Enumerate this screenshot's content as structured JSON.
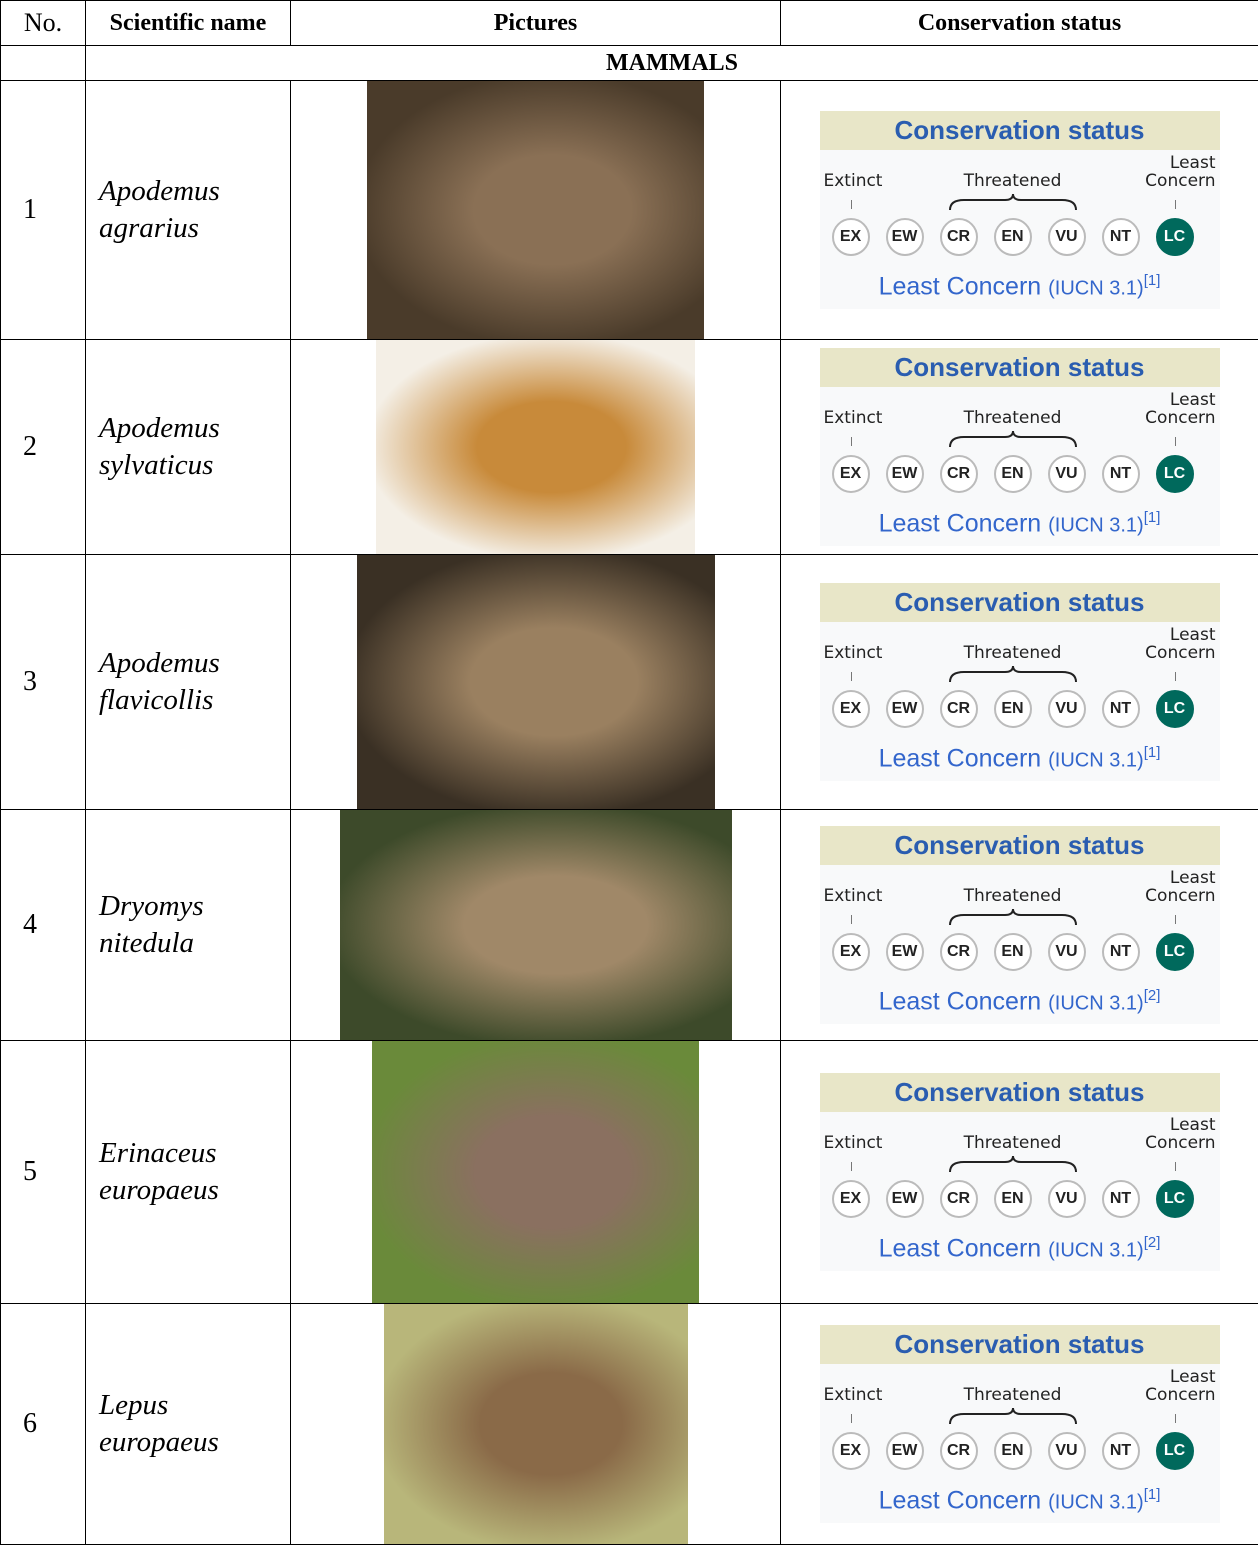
{
  "table": {
    "columns": [
      "No.",
      "Scientific name",
      "Pictures",
      "Conservation status"
    ],
    "section": "MAMMALS",
    "rows": [
      {
        "number": "1",
        "name": "Apodemus agrarius",
        "status": {
          "title": "Conservation status",
          "extinct": "Extinct",
          "threatened": "Threatened",
          "least_concern": [
            "Least",
            "Concern"
          ],
          "codes": [
            "EX",
            "EW",
            "CR",
            "EN",
            "VU",
            "NT",
            "LC"
          ],
          "assessment": "Least Concern",
          "system": "(IUCN 3.1)",
          "ref": "[1]"
        }
      },
      {
        "number": "2",
        "name": "Apodemus sylvaticus",
        "status": {
          "title": "Conservation status",
          "extinct": "Extinct",
          "threatened": "Threatened",
          "least_concern": [
            "Least",
            "Concern"
          ],
          "codes": [
            "EX",
            "EW",
            "CR",
            "EN",
            "VU",
            "NT",
            "LC"
          ],
          "assessment": "Least Concern",
          "system": "(IUCN 3.1)",
          "ref": "[1]"
        }
      },
      {
        "number": "3",
        "name": "Apodemus flavicollis",
        "status": {
          "title": "Conservation status",
          "extinct": "Extinct",
          "threatened": "Threatened",
          "least_concern": [
            "Least",
            "Concern"
          ],
          "codes": [
            "EX",
            "EW",
            "CR",
            "EN",
            "VU",
            "NT",
            "LC"
          ],
          "assessment": "Least Concern",
          "system": "(IUCN 3.1)",
          "ref": "[1]"
        }
      },
      {
        "number": "4",
        "name": "Dryomys nitedula",
        "status": {
          "title": "Conservation status",
          "extinct": "Extinct",
          "threatened": "Threatened",
          "least_concern": [
            "Least",
            "Concern"
          ],
          "codes": [
            "EX",
            "EW",
            "CR",
            "EN",
            "VU",
            "NT",
            "LC"
          ],
          "assessment": "Least Concern",
          "system": "(IUCN 3.1)",
          "ref": "[2]"
        }
      },
      {
        "number": "5",
        "name": "Erinaceus europaeus",
        "status": {
          "title": "Conservation status",
          "extinct": "Extinct",
          "threatened": "Threatened",
          "least_concern": [
            "Least",
            "Concern"
          ],
          "codes": [
            "EX",
            "EW",
            "CR",
            "EN",
            "VU",
            "NT",
            "LC"
          ],
          "assessment": "Least Concern",
          "system": "(IUCN 3.1)",
          "ref": "[2]"
        }
      },
      {
        "number": "6",
        "name": "Lepus europaeus",
        "status": {
          "title": "Conservation status",
          "extinct": "Extinct",
          "threatened": "Threatened",
          "least_concern": [
            "Least",
            "Concern"
          ],
          "codes": [
            "EX",
            "EW",
            "CR",
            "EN",
            "VU",
            "NT",
            "LC"
          ],
          "assessment": "Least Concern",
          "system": "(IUCN 3.1)",
          "ref": "[1]"
        }
      }
    ]
  }
}
